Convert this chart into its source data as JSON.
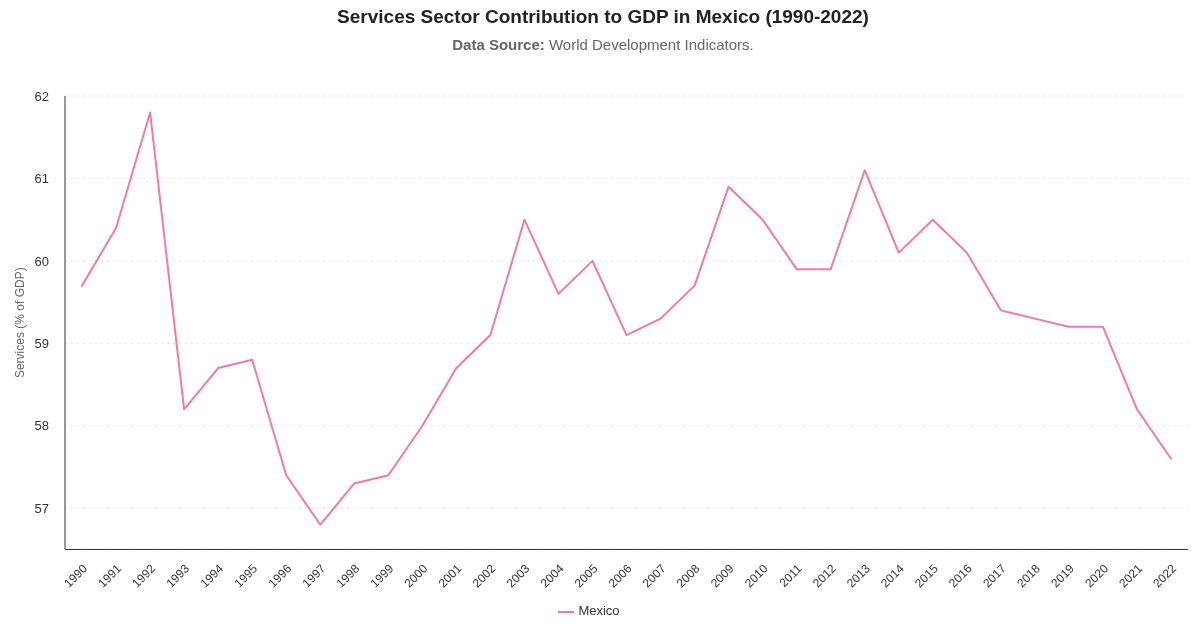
{
  "chart_data": {
    "type": "line",
    "title": "Services Sector Contribution to GDP in Mexico (1990-2022)",
    "subtitle": "Data Source: World Development Indicators.",
    "ylabel": "Services (% of GDP)",
    "categories": [
      "1990",
      "1991",
      "1992",
      "1993",
      "1994",
      "1995",
      "1996",
      "1997",
      "1998",
      "1999",
      "2000",
      "2001",
      "2002",
      "2003",
      "2004",
      "2005",
      "2006",
      "2007",
      "2008",
      "2009",
      "2010",
      "2011",
      "2012",
      "2013",
      "2014",
      "2015",
      "2016",
      "2017",
      "2018",
      "2019",
      "2020",
      "2021",
      "2022"
    ],
    "series": [
      {
        "name": "Mexico",
        "color": "#f27aa6",
        "values": [
          59.7,
          60.4,
          61.8,
          58.2,
          58.7,
          58.8,
          57.4,
          56.8,
          57.3,
          57.4,
          58.0,
          58.7,
          59.1,
          60.5,
          59.6,
          60.0,
          59.1,
          59.3,
          59.7,
          60.9,
          60.5,
          59.9,
          59.9,
          61.1,
          60.1,
          60.5,
          60.1,
          59.4,
          59.3,
          59.2,
          59.2,
          58.2,
          57.6
        ]
      }
    ],
    "ylim": [
      56.5,
      62
    ],
    "yticks": [
      57,
      58,
      59,
      60,
      61,
      62
    ],
    "grid": "y",
    "legend": "bottom",
    "marker": "none",
    "line_style": "solid"
  }
}
